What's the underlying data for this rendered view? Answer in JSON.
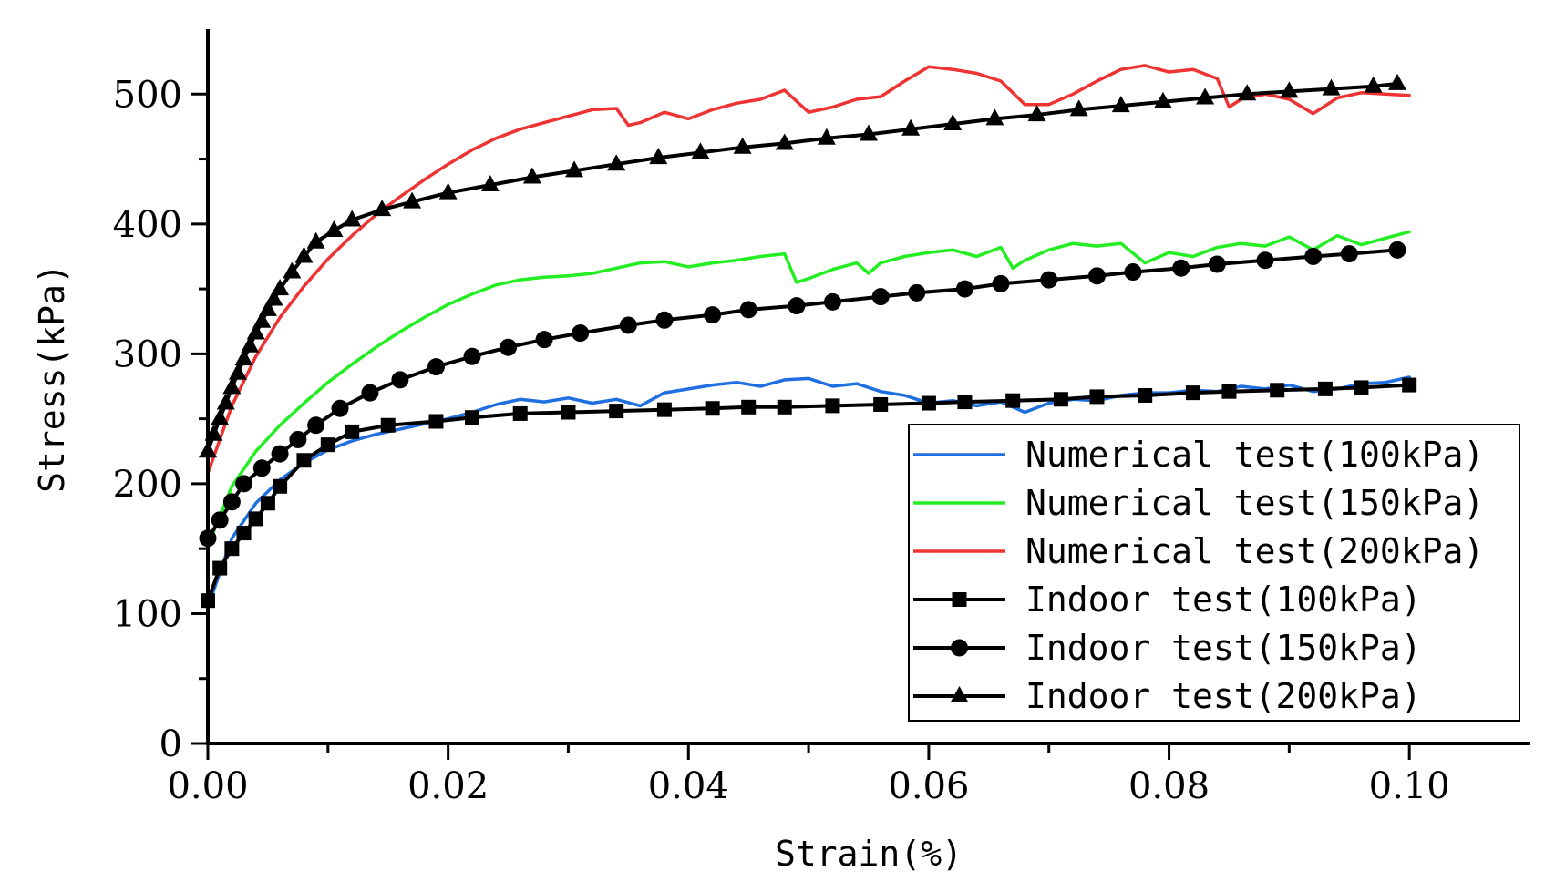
{
  "chart_data": {
    "type": "line",
    "title": "",
    "xlabel": "Strain(%)",
    "ylabel": "Stress(kPa)",
    "xlim": [
      0,
      0.11
    ],
    "ylim": [
      0,
      550
    ],
    "xticks": [
      0.0,
      0.02,
      0.04,
      0.06,
      0.08,
      0.1
    ],
    "xtick_labels": [
      "0.00",
      "0.02",
      "0.04",
      "0.06",
      "0.08",
      "0.10"
    ],
    "yticks": [
      0,
      100,
      200,
      300,
      400,
      500
    ],
    "ytick_labels": [
      "0",
      "100",
      "200",
      "300",
      "400",
      "500"
    ],
    "legend_position": "lower-right",
    "series": [
      {
        "name": "Numerical test(100kPa)",
        "kind": "numerical",
        "color": "#1f6fe0",
        "x": [
          0,
          0.002,
          0.004,
          0.006,
          0.008,
          0.01,
          0.012,
          0.014,
          0.016,
          0.018,
          0.02,
          0.022,
          0.024,
          0.026,
          0.028,
          0.03,
          0.032,
          0.034,
          0.036,
          0.038,
          0.04,
          0.042,
          0.044,
          0.046,
          0.048,
          0.05,
          0.052,
          0.054,
          0.056,
          0.058,
          0.06,
          0.062,
          0.064,
          0.066,
          0.068,
          0.07,
          0.072,
          0.074,
          0.076,
          0.078,
          0.08,
          0.082,
          0.084,
          0.086,
          0.088,
          0.09,
          0.092,
          0.094,
          0.096,
          0.098,
          0.1
        ],
        "y": [
          105,
          158,
          185,
          203,
          216,
          226,
          233,
          238,
          242,
          246,
          250,
          255,
          261,
          265,
          263,
          266,
          262,
          265,
          260,
          270,
          273,
          276,
          278,
          275,
          280,
          281,
          275,
          277,
          271,
          268,
          262,
          264,
          260,
          263,
          255,
          262,
          265,
          264,
          268,
          270,
          270,
          272,
          271,
          275,
          273,
          276,
          271,
          273,
          277,
          278,
          282
        ]
      },
      {
        "name": "Numerical test(150kPa)",
        "kind": "numerical",
        "color": "#22ee22",
        "x": [
          0,
          0.002,
          0.004,
          0.006,
          0.008,
          0.01,
          0.012,
          0.014,
          0.016,
          0.018,
          0.02,
          0.022,
          0.024,
          0.026,
          0.028,
          0.03,
          0.032,
          0.034,
          0.036,
          0.038,
          0.04,
          0.042,
          0.044,
          0.046,
          0.048,
          0.049,
          0.05,
          0.052,
          0.054,
          0.055,
          0.056,
          0.058,
          0.06,
          0.062,
          0.064,
          0.066,
          0.067,
          0.068,
          0.07,
          0.072,
          0.074,
          0.076,
          0.078,
          0.08,
          0.082,
          0.084,
          0.086,
          0.088,
          0.09,
          0.092,
          0.094,
          0.096,
          0.098,
          0.1
        ],
        "y": [
          152,
          198,
          225,
          245,
          262,
          278,
          292,
          305,
          317,
          328,
          338,
          346,
          353,
          357,
          359,
          360,
          362,
          366,
          370,
          371,
          367,
          370,
          372,
          375,
          377,
          355,
          358,
          365,
          370,
          362,
          370,
          375,
          378,
          380,
          375,
          382,
          366,
          372,
          380,
          385,
          383,
          385,
          370,
          378,
          375,
          382,
          385,
          383,
          390,
          380,
          391,
          384,
          389,
          394
        ]
      },
      {
        "name": "Numerical test(200kPa)",
        "kind": "numerical",
        "color": "#ee3333",
        "x": [
          0,
          0.002,
          0.004,
          0.006,
          0.008,
          0.01,
          0.012,
          0.014,
          0.016,
          0.018,
          0.02,
          0.022,
          0.024,
          0.026,
          0.028,
          0.03,
          0.032,
          0.034,
          0.035,
          0.036,
          0.038,
          0.04,
          0.042,
          0.044,
          0.046,
          0.048,
          0.05,
          0.052,
          0.054,
          0.056,
          0.058,
          0.06,
          0.062,
          0.064,
          0.066,
          0.068,
          0.07,
          0.072,
          0.074,
          0.076,
          0.078,
          0.08,
          0.082,
          0.084,
          0.085,
          0.086,
          0.088,
          0.09,
          0.092,
          0.094,
          0.096,
          0.098,
          0.1
        ],
        "y": [
          208,
          260,
          298,
          328,
          352,
          373,
          391,
          407,
          421,
          434,
          446,
          457,
          466,
          473,
          478,
          483,
          488,
          489,
          476,
          478,
          486,
          481,
          488,
          493,
          496,
          503,
          486,
          490,
          496,
          498,
          510,
          521,
          519,
          516,
          510,
          492,
          492,
          500,
          510,
          519,
          522,
          517,
          519,
          512,
          490,
          496,
          500,
          496,
          485,
          497,
          501,
          500,
          499
        ]
      },
      {
        "name": "Indoor test(100kPa)",
        "kind": "indoor",
        "marker": "square",
        "color": "#000000",
        "x": [
          0,
          0.001,
          0.002,
          0.003,
          0.004,
          0.005,
          0.006,
          0.008,
          0.01,
          0.012,
          0.015,
          0.019,
          0.022,
          0.026,
          0.03,
          0.034,
          0.038,
          0.042,
          0.045,
          0.048,
          0.052,
          0.056,
          0.06,
          0.063,
          0.067,
          0.071,
          0.074,
          0.078,
          0.082,
          0.085,
          0.089,
          0.093,
          0.096,
          0.1
        ],
        "y": [
          110,
          135,
          150,
          162,
          173,
          185,
          198,
          218,
          230,
          240,
          245,
          248,
          251,
          254,
          255,
          256,
          257,
          258,
          259,
          259,
          260,
          261,
          262,
          263,
          264,
          265,
          267,
          268,
          270,
          271,
          272,
          273,
          274,
          276
        ]
      },
      {
        "name": "Indoor test(150kPa)",
        "kind": "indoor",
        "marker": "circle",
        "color": "#000000",
        "x": [
          0,
          0.001,
          0.002,
          0.003,
          0.0045,
          0.006,
          0.0075,
          0.009,
          0.011,
          0.0135,
          0.016,
          0.019,
          0.022,
          0.025,
          0.028,
          0.031,
          0.035,
          0.038,
          0.042,
          0.045,
          0.049,
          0.052,
          0.056,
          0.059,
          0.063,
          0.066,
          0.07,
          0.074,
          0.077,
          0.081,
          0.084,
          0.088,
          0.092,
          0.095,
          0.099
        ],
        "y": [
          158,
          172,
          186,
          200,
          212,
          223,
          234,
          245,
          258,
          270,
          280,
          290,
          298,
          305,
          311,
          316,
          322,
          326,
          330,
          334,
          337,
          340,
          344,
          347,
          350,
          354,
          357,
          360,
          363,
          366,
          369,
          372,
          375,
          377,
          380
        ]
      },
      {
        "name": "Indoor test(200kPa)",
        "kind": "indoor",
        "marker": "triangle",
        "color": "#000000",
        "x": [
          0,
          0.0005,
          0.001,
          0.0015,
          0.002,
          0.0025,
          0.003,
          0.0035,
          0.004,
          0.0045,
          0.005,
          0.0055,
          0.006,
          0.007,
          0.008,
          0.009,
          0.0105,
          0.012,
          0.0145,
          0.017,
          0.02,
          0.0235,
          0.027,
          0.0305,
          0.034,
          0.0375,
          0.041,
          0.0445,
          0.048,
          0.0515,
          0.055,
          0.0585,
          0.062,
          0.0655,
          0.069,
          0.0725,
          0.076,
          0.0795,
          0.083,
          0.0865,
          0.09,
          0.0935,
          0.097,
          0.099
        ],
        "y": [
          225,
          238,
          250,
          262,
          274,
          285,
          296,
          306,
          316,
          325,
          334,
          342,
          350,
          363,
          375,
          386,
          395,
          403,
          411,
          417,
          424,
          430,
          436,
          441,
          446,
          451,
          455,
          459,
          462,
          466,
          469,
          473,
          477,
          481,
          484,
          488,
          491,
          494,
          497,
          500,
          502,
          504,
          506,
          508
        ]
      }
    ]
  }
}
